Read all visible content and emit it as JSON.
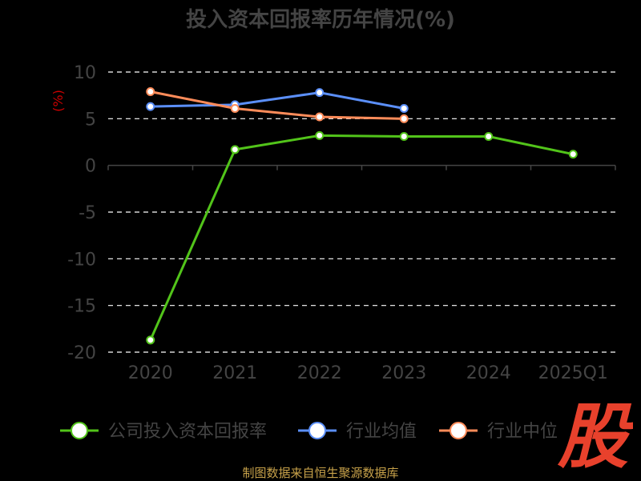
{
  "title": "投入资本回报率历年情况(%)",
  "source": "制图数据来自恒生聚源数据库",
  "logo_text": "股",
  "chart_data": {
    "type": "line",
    "unit_label": "(%)",
    "categories": [
      "2020",
      "2021",
      "2022",
      "2023",
      "2024",
      "2025Q1"
    ],
    "ylim": [
      -20,
      10
    ],
    "yticks": [
      10,
      5,
      0,
      -5,
      -10,
      -15,
      -20
    ],
    "grid": true,
    "legend_position": "bottom",
    "series": [
      {
        "name": "公司投入资本回报率",
        "color": "#52c41a",
        "values": [
          -18.7,
          1.7,
          3.2,
          3.1,
          3.1,
          1.2
        ]
      },
      {
        "name": "行业均值",
        "color": "#5b8ff9",
        "values": [
          6.3,
          6.5,
          7.8,
          6.1,
          null,
          null
        ]
      },
      {
        "name": "行业中位",
        "color": "#ff8c5a",
        "values": [
          7.9,
          6.1,
          5.2,
          5.0,
          null,
          null
        ]
      }
    ]
  }
}
